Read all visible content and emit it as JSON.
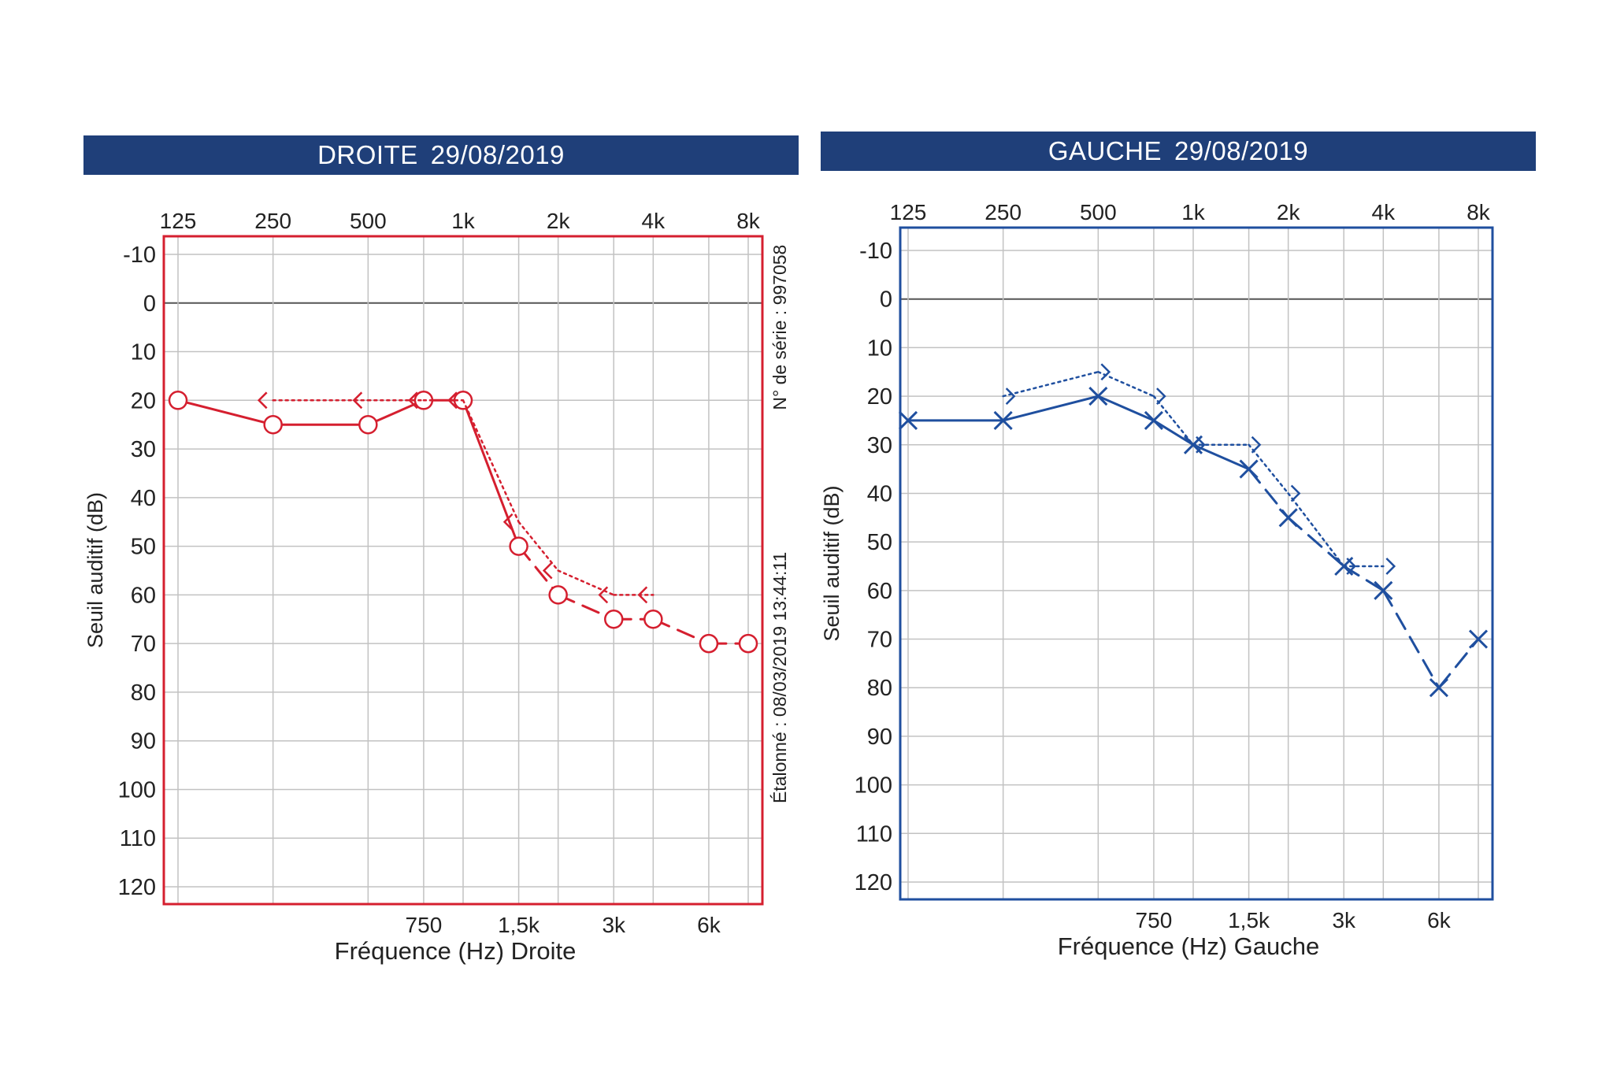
{
  "chart_data": [
    {
      "type": "line",
      "ear": "right",
      "color": "#d51f2f",
      "title": "DROITE",
      "date": "29/08/2019",
      "ylabel": "Seuil auditif (dB)",
      "xlabel": "Fréquence (Hz) Droite",
      "ylim": [
        -10,
        120
      ],
      "x_scale": "log",
      "grid": true,
      "top_tick_labels": [
        "125",
        "250",
        "500",
        "1k",
        "2k",
        "4k",
        "8k"
      ],
      "bottom_tick_labels": [
        "750",
        "1,5k",
        "3k",
        "6k"
      ],
      "y_tick_labels": [
        "-10",
        "0",
        "10",
        "20",
        "30",
        "40",
        "50",
        "60",
        "70",
        "80",
        "90",
        "100",
        "110",
        "120"
      ],
      "side_note_1": "N° de série : 997058",
      "side_note_2": "Étalonné : 08/03/2019 13:44:11",
      "series": [
        {
          "marker": "circle",
          "line": "solid-dashed",
          "points": [
            [
              125,
              20
            ],
            [
              250,
              25
            ],
            [
              500,
              25
            ],
            [
              750,
              20
            ],
            [
              1000,
              20
            ],
            [
              1500,
              50
            ],
            [
              2000,
              60
            ],
            [
              3000,
              65
            ],
            [
              4000,
              65
            ],
            [
              6000,
              70
            ],
            [
              8000,
              70
            ]
          ]
        },
        {
          "marker": "bracket-left",
          "line": "dotted",
          "points": [
            [
              250,
              20
            ],
            [
              500,
              20
            ],
            [
              750,
              20
            ],
            [
              1000,
              20
            ],
            [
              1500,
              45
            ],
            [
              2000,
              55
            ],
            [
              3000,
              60
            ],
            [
              4000,
              60
            ]
          ]
        }
      ]
    },
    {
      "type": "line",
      "ear": "left",
      "color": "#1f4f9f",
      "title": "GAUCHE",
      "date": "29/08/2019",
      "ylabel": "Seuil auditif (dB)",
      "xlabel": "Fréquence (Hz) Gauche",
      "ylim": [
        -10,
        120
      ],
      "x_scale": "log",
      "grid": true,
      "top_tick_labels": [
        "125",
        "250",
        "500",
        "1k",
        "2k",
        "4k",
        "8k"
      ],
      "bottom_tick_labels": [
        "750",
        "1,5k",
        "3k",
        "6k"
      ],
      "y_tick_labels": [
        "-10",
        "0",
        "10",
        "20",
        "30",
        "40",
        "50",
        "60",
        "70",
        "80",
        "90",
        "100",
        "110",
        "120"
      ],
      "series": [
        {
          "marker": "x",
          "line": "solid-dashed",
          "points": [
            [
              125,
              25
            ],
            [
              250,
              25
            ],
            [
              500,
              20
            ],
            [
              750,
              25
            ],
            [
              1000,
              30
            ],
            [
              1500,
              35
            ],
            [
              2000,
              45
            ],
            [
              3000,
              55
            ],
            [
              4000,
              60
            ],
            [
              6000,
              80
            ],
            [
              8000,
              70
            ]
          ]
        },
        {
          "marker": "bracket-right",
          "line": "dotted",
          "points": [
            [
              250,
              20
            ],
            [
              500,
              15
            ],
            [
              750,
              20
            ],
            [
              1000,
              30
            ],
            [
              1500,
              30
            ],
            [
              2000,
              40
            ],
            [
              3000,
              55
            ],
            [
              4000,
              55
            ]
          ]
        }
      ]
    }
  ]
}
